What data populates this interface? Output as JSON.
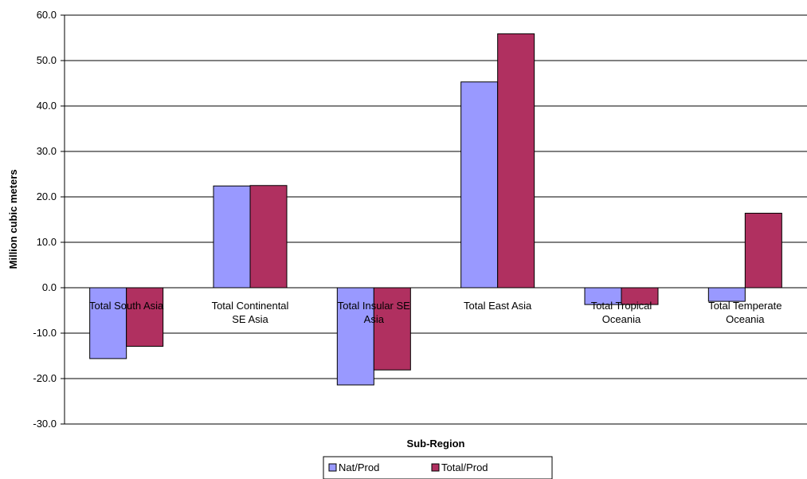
{
  "chart_data": {
    "type": "bar",
    "title": "",
    "xlabel": "Sub-Region",
    "ylabel": "Million cubic meters",
    "ylim": [
      -30,
      60
    ],
    "yticks": [
      60,
      50,
      40,
      30,
      20,
      10,
      0,
      -10,
      -20,
      -30
    ],
    "ytick_labels": [
      "60.0",
      "50.0",
      "40.0",
      "30.0",
      "20.0",
      "10.0",
      "0.0",
      "-10.0",
      "-20.0",
      "-30.0"
    ],
    "grid": true,
    "legend_position": "bottom",
    "categories": [
      [
        "Total South Asia"
      ],
      [
        "Total Continental",
        "SE Asia"
      ],
      [
        "Total Insular SE",
        "Asia"
      ],
      [
        "Total East Asia"
      ],
      [
        "Total Tropical",
        "Oceania"
      ],
      [
        "Total Temperate",
        "Oceania"
      ]
    ],
    "series": [
      {
        "name": "Nat/Prod",
        "color": "#9999ff",
        "values": [
          -15.6,
          22.4,
          -21.4,
          45.3,
          -3.7,
          -3.0
        ]
      },
      {
        "name": "Total/Prod",
        "color": "#b03060",
        "values": [
          -12.9,
          22.5,
          -18.1,
          55.9,
          -3.7,
          16.4
        ]
      }
    ]
  }
}
